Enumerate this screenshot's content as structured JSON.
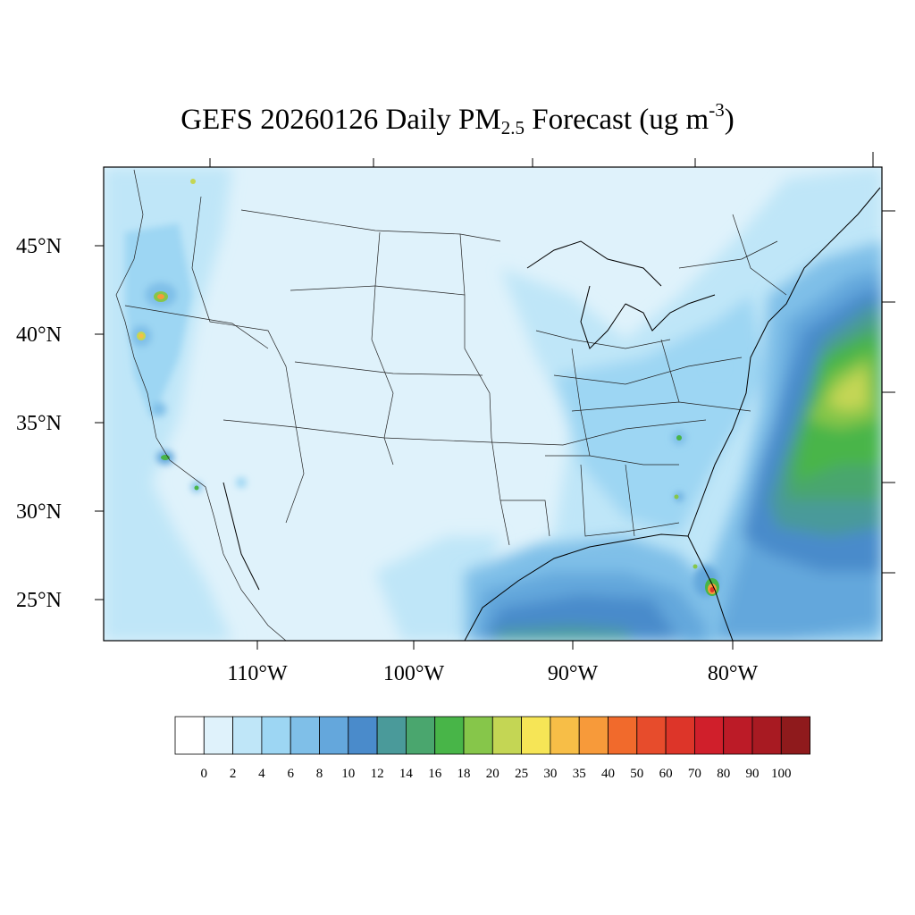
{
  "title": {
    "main": "GEFS 20260126 Daily PM",
    "subscript": "2.5",
    "middle": " Forecast (ug m",
    "superscript": "-3",
    "end": ")"
  },
  "map": {
    "projection": "Lambert conformal (CONUS)",
    "variable": "PM2.5",
    "units": "ug m-3",
    "date": "20260126",
    "latitude_labels": [
      "45°N",
      "40°N",
      "35°N",
      "30°N",
      "25°N"
    ],
    "longitude_labels": [
      "110°W",
      "100°W",
      "90°W",
      "80°W"
    ]
  },
  "colorbar": {
    "labels": [
      "0",
      "2",
      "4",
      "6",
      "8",
      "10",
      "12",
      "14",
      "16",
      "18",
      "20",
      "25",
      "30",
      "35",
      "40",
      "50",
      "60",
      "70",
      "80",
      "90",
      "100"
    ],
    "colors": [
      "#ffffff",
      "#dff2fb",
      "#bfe6f8",
      "#9dd6f3",
      "#7fbfe8",
      "#64a7dc",
      "#4a8bcb",
      "#4a9a9a",
      "#4aa66e",
      "#48b548",
      "#86c64a",
      "#c4d654",
      "#f6e556",
      "#f7be47",
      "#f79a3a",
      "#f16a2c",
      "#e74c2c",
      "#dd3529",
      "#d01f2b",
      "#bc1b27",
      "#a81a22",
      "#8f1a1c"
    ]
  },
  "chart_data": {
    "type": "heatmap",
    "title": "GEFS 20260126 Daily PM2.5 Forecast (ug m-3)",
    "x_ticks": [
      "110°W",
      "100°W",
      "90°W",
      "80°W"
    ],
    "y_ticks": [
      "45°N",
      "40°N",
      "35°N",
      "30°N",
      "25°N"
    ],
    "color_levels": [
      0,
      2,
      4,
      6,
      8,
      10,
      12,
      14,
      16,
      18,
      20,
      25,
      30,
      35,
      40,
      50,
      60,
      70,
      80,
      90,
      100
    ],
    "colorbar_position": "bottom"
  }
}
